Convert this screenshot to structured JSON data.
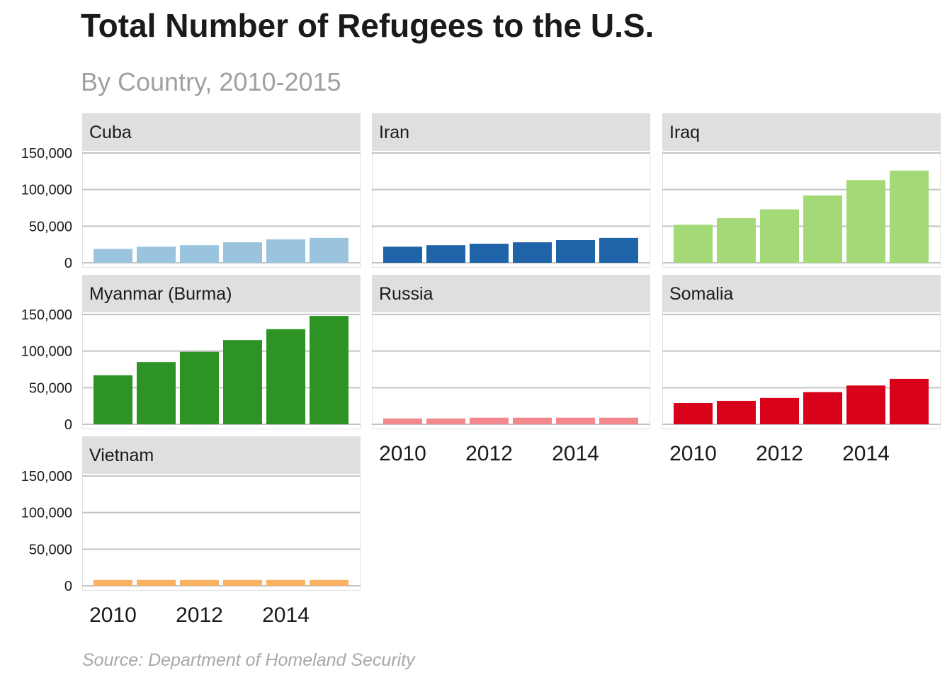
{
  "chart_data": {
    "type": "bar",
    "title": "Total Number of Refugees to the U.S.",
    "subtitle": "By Country, 2010-2015",
    "caption": "Source: Department of Homeland Security",
    "x": [
      2010,
      2011,
      2012,
      2013,
      2014,
      2015
    ],
    "x_tick_labels": [
      "2010",
      "2012",
      "2014"
    ],
    "y_ticks": [
      0,
      50000,
      100000,
      150000
    ],
    "y_tick_labels": [
      "0",
      "50,000",
      "100,000",
      "150,000"
    ],
    "ylim": [
      0,
      150000
    ],
    "grid": true,
    "facets": [
      {
        "name": "Cuba",
        "color": "#9ac3dd",
        "values": [
          19000,
          22000,
          24000,
          28000,
          32000,
          34000
        ]
      },
      {
        "name": "Iran",
        "color": "#1f64a8",
        "values": [
          22000,
          24000,
          26000,
          28000,
          31000,
          34000
        ]
      },
      {
        "name": "Iraq",
        "color": "#a3da77",
        "values": [
          52000,
          61000,
          73000,
          92000,
          113000,
          126000
        ]
      },
      {
        "name": "Myanmar (Burma)",
        "color": "#2d9324",
        "values": [
          67000,
          85000,
          99000,
          115000,
          130000,
          148000
        ]
      },
      {
        "name": "Russia",
        "color": "#f2878d",
        "values": [
          8000,
          8000,
          9000,
          9000,
          9000,
          9000
        ]
      },
      {
        "name": "Somalia",
        "color": "#d8021b",
        "values": [
          29000,
          32000,
          36000,
          44000,
          53000,
          62000
        ]
      },
      {
        "name": "Vietnam",
        "color": "#fbb163",
        "values": [
          8000,
          8000,
          8000,
          8000,
          8000,
          8000
        ]
      }
    ]
  }
}
